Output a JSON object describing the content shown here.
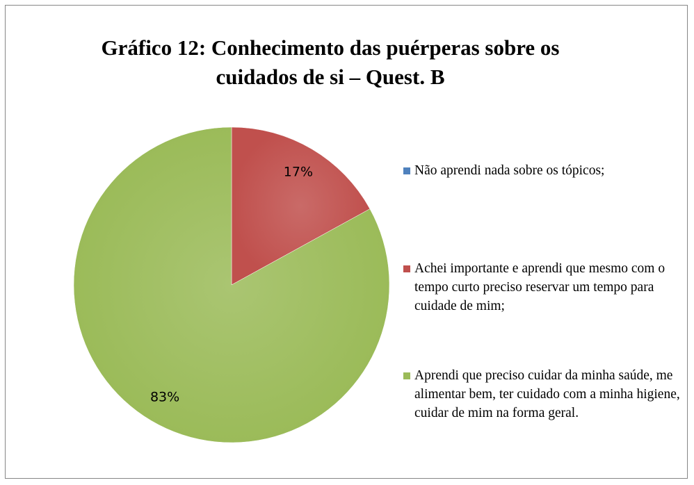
{
  "chart_data": {
    "type": "pie",
    "title": "Gráfico 12: Conhecimento das puérperas sobre os cuidados de si – Quest. B",
    "categories": [
      "Não aprendi nada  sobre os tópicos;",
      "Achei importante e aprendi que mesmo com o tempo curto preciso reservar um tempo para cuidade de mim;",
      "Aprendi que preciso cuidar da minha saúde, me alimentar bem, ter cuidado com a minha higiene, cuidar de mim na forma geral."
    ],
    "values": [
      0,
      17,
      83
    ],
    "value_labels": [
      null,
      "17%",
      "83%"
    ],
    "colors": [
      "#4f81bd",
      "#c0504d",
      "#9bbb59"
    ],
    "legend": "right"
  }
}
